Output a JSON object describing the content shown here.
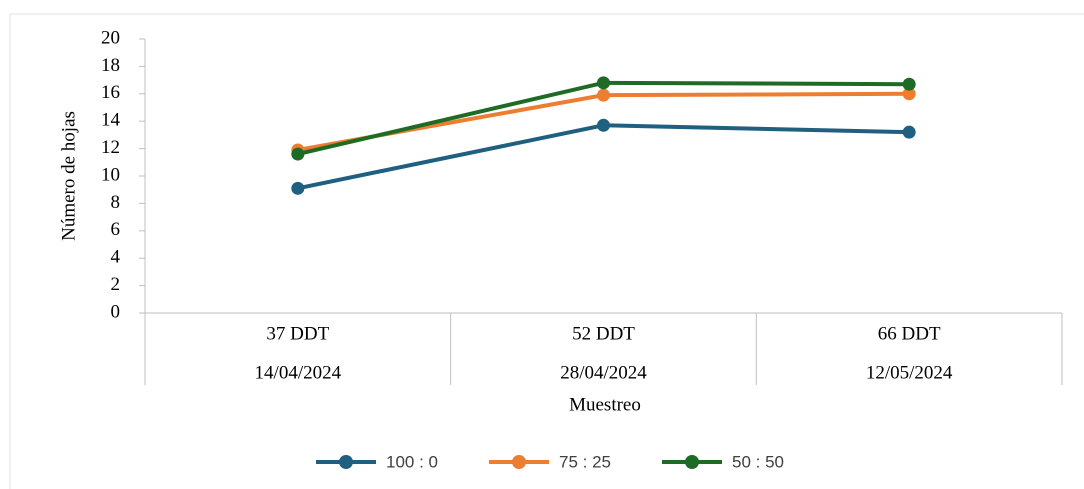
{
  "chart_data": {
    "type": "line",
    "y_label": "Número de hojas",
    "x_label": "Muestreo",
    "categories": [
      [
        "37 DDT",
        "14/04/2024"
      ],
      [
        "52 DDT",
        "28/04/2024"
      ],
      [
        "66 DDT",
        "12/05/2024"
      ]
    ],
    "series": [
      {
        "name": "100 : 0",
        "color": "#1f5f80",
        "values": [
          9.1,
          13.7,
          13.2
        ]
      },
      {
        "name": "75 : 25",
        "color": "#ed7d31",
        "values": [
          11.9,
          15.9,
          16.0
        ]
      },
      {
        "name": "50 : 50",
        "color": "#1e6b25",
        "values": [
          11.6,
          16.8,
          16.7
        ]
      }
    ],
    "ylim": [
      0,
      20
    ],
    "yticks": [
      0,
      2,
      4,
      6,
      8,
      10,
      12,
      14,
      16,
      18,
      20
    ]
  }
}
